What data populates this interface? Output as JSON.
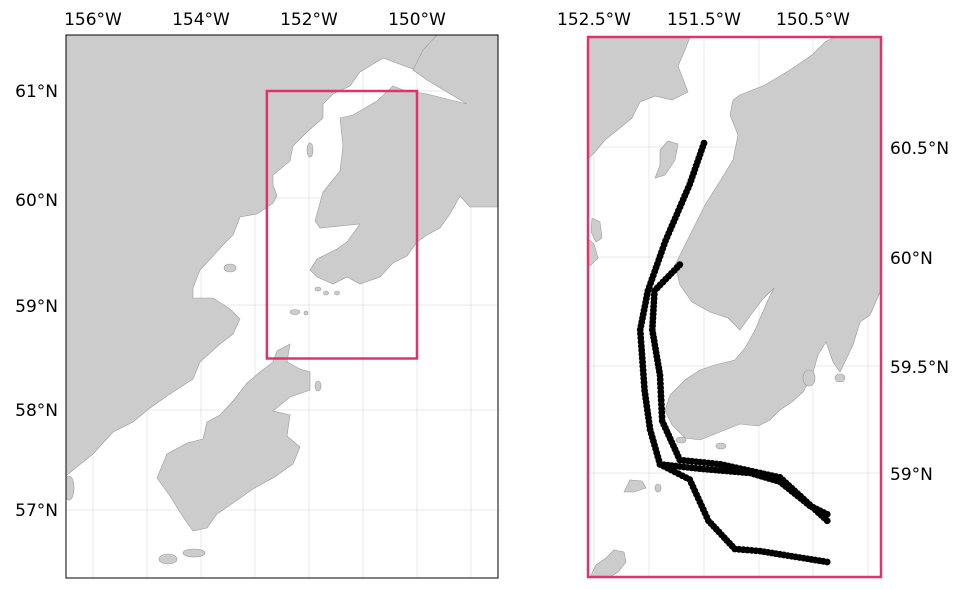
{
  "overview_map": {
    "lon_ticks": [
      "156°W",
      "154°W",
      "152°W",
      "150°W"
    ],
    "lat_ticks": [
      "61°N",
      "60°N",
      "59°N",
      "58°N",
      "57°N"
    ],
    "inset_box": {
      "lon_min": -152.78,
      "lon_max": -150.0,
      "lat_min": 58.5,
      "lat_max": 61.0,
      "color": "#e0336a"
    }
  },
  "detail_map": {
    "lon_ticks": [
      "152.5°W",
      "151.5°W",
      "150.5°W"
    ],
    "lat_ticks": [
      "60.5°N",
      "60°N",
      "59.5°N",
      "59°N"
    ],
    "frame_color": "#e0336a",
    "track_color": "#000000",
    "land_color": "#cccccc",
    "tracks": [
      [
        [
          -151.5,
          60.52
        ],
        [
          -151.63,
          60.33
        ],
        [
          -151.85,
          60.07
        ],
        [
          -152.01,
          59.84
        ],
        [
          -152.08,
          59.66
        ],
        [
          -152.04,
          59.38
        ],
        [
          -151.99,
          59.2
        ],
        [
          -151.9,
          59.04
        ],
        [
          -151.54,
          59.02
        ],
        [
          -151.08,
          59.0
        ],
        [
          -150.81,
          58.96
        ],
        [
          -150.54,
          58.85
        ],
        [
          -150.38,
          58.81
        ]
      ],
      [
        [
          -151.72,
          59.96
        ],
        [
          -151.95,
          59.84
        ],
        [
          -151.97,
          59.66
        ],
        [
          -151.9,
          59.45
        ],
        [
          -151.88,
          59.24
        ],
        [
          -151.72,
          59.06
        ],
        [
          -151.35,
          59.04
        ],
        [
          -150.81,
          58.98
        ],
        [
          -150.38,
          58.78
        ]
      ],
      [
        [
          -151.9,
          59.04
        ],
        [
          -151.63,
          58.97
        ],
        [
          -151.46,
          58.78
        ],
        [
          -151.22,
          58.65
        ],
        [
          -150.99,
          58.64
        ],
        [
          -150.38,
          58.59
        ]
      ]
    ]
  }
}
